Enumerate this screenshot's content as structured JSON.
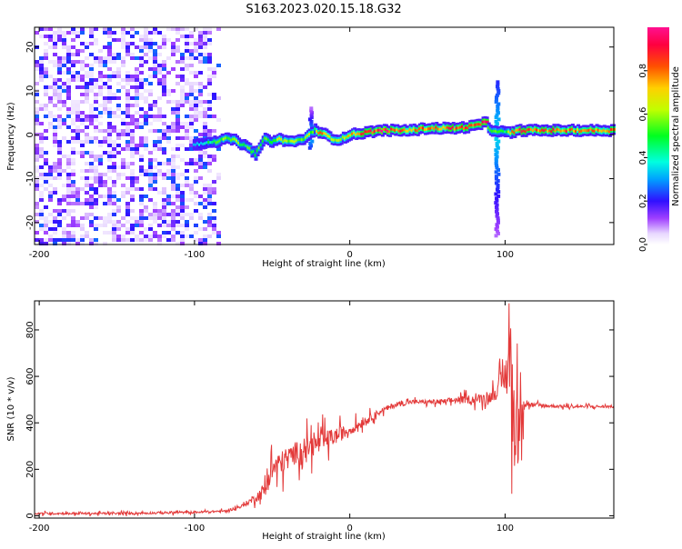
{
  "title": "S163.2023.020.15.18.G32",
  "colors": {
    "signal": "#e33a3a",
    "frame": "#000000"
  },
  "chart_data": [
    {
      "type": "heatmap",
      "xlabel": "Height of straight line (km)",
      "ylabel": "Frequency (Hz)",
      "xlim": [
        -203,
        170
      ],
      "ylim": [
        -25,
        24.5
      ],
      "x_ticks": [
        {
          "v": -200,
          "label": "-200"
        },
        {
          "v": -100,
          "label": "-100"
        },
        {
          "v": 0,
          "label": "0"
        },
        {
          "v": 100,
          "label": "100"
        }
      ],
      "y_ticks": [
        {
          "v": -20,
          "label": "-20"
        },
        {
          "v": -10,
          "label": "-10"
        },
        {
          "v": 0,
          "label": "0"
        },
        {
          "v": 10,
          "label": "10"
        },
        {
          "v": 20,
          "label": "20"
        }
      ],
      "colorbar": {
        "label": "Normalized spectral amplitude",
        "range": [
          0,
          1
        ],
        "ticks": [
          {
            "v": 0.0,
            "label": "0.0"
          },
          {
            "v": 0.2,
            "label": "0.2"
          },
          {
            "v": 0.4,
            "label": "0.4"
          },
          {
            "v": 0.6,
            "label": "0.6"
          },
          {
            "v": 0.8,
            "label": "0.8"
          }
        ]
      },
      "ridge": {
        "x": [
          -100,
          -95,
          -90,
          -85,
          -80,
          -75,
          -70,
          -65,
          -60,
          -55,
          -50,
          -45,
          -40,
          -35,
          -30,
          -25,
          -22,
          -20,
          -15,
          -10,
          -5,
          0,
          10,
          20,
          30,
          40,
          50,
          60,
          70,
          80,
          85,
          88,
          90,
          95,
          100,
          105,
          110,
          120,
          130,
          140,
          150,
          160,
          170
        ],
        "freq": [
          -2,
          -2,
          -1.5,
          -1.5,
          -1,
          -1,
          -2,
          -3,
          -4.5,
          -1,
          -1.5,
          -1,
          -1.5,
          -1.5,
          -1,
          0,
          1.5,
          0.5,
          0,
          -1,
          -1,
          0,
          0.5,
          1,
          1,
          1,
          1.5,
          1.5,
          1.5,
          2,
          2.5,
          3,
          1,
          1,
          0.5,
          0.5,
          1,
          1,
          1,
          1,
          1,
          1,
          1
        ],
        "amp": [
          0.35,
          0.35,
          0.45,
          0.5,
          0.55,
          0.6,
          0.55,
          0.5,
          0.55,
          0.5,
          0.55,
          0.6,
          0.6,
          0.6,
          0.55,
          0.6,
          0.5,
          0.75,
          0.7,
          0.6,
          0.6,
          0.7,
          0.8,
          0.9,
          0.85,
          0.8,
          0.8,
          0.8,
          0.85,
          0.85,
          0.9,
          0.9,
          0.55,
          0.5,
          0.45,
          0.8,
          0.9,
          0.85,
          0.8,
          0.8,
          0.8,
          0.8,
          0.8
        ]
      },
      "spikes": [
        {
          "x": -25,
          "fmin": -3,
          "fmax": 6
        },
        {
          "x": 95,
          "fmin": -23,
          "fmax": 12
        }
      ]
    },
    {
      "type": "line",
      "name": "SNR",
      "xlabel": "Height of straight line (km)",
      "ylabel": "SNR (10 * v/v)",
      "xlim": [
        -203,
        170
      ],
      "ylim": [
        -10,
        925
      ],
      "x_ticks": [
        {
          "v": -200,
          "label": "-200"
        },
        {
          "v": -100,
          "label": "-100"
        },
        {
          "v": 0,
          "label": "0"
        },
        {
          "v": 100,
          "label": "100"
        }
      ],
      "y_ticks": [
        {
          "v": 0,
          "label": "0"
        },
        {
          "v": 200,
          "label": "200"
        },
        {
          "v": 400,
          "label": "400"
        },
        {
          "v": 600,
          "label": "600"
        },
        {
          "v": 800,
          "label": "800"
        }
      ],
      "x": [
        -203,
        -150,
        -100,
        -80,
        -70,
        -60,
        -55,
        -50,
        -45,
        -40,
        -30,
        -20,
        -10,
        0,
        10,
        20,
        30,
        40,
        50,
        60,
        70,
        80,
        90,
        95,
        100,
        103,
        105,
        108,
        110,
        115,
        120,
        140,
        160,
        170
      ],
      "y": [
        10,
        10,
        15,
        20,
        40,
        80,
        110,
        200,
        220,
        250,
        290,
        310,
        340,
        370,
        410,
        450,
        480,
        490,
        490,
        490,
        500,
        500,
        510,
        540,
        600,
        680,
        500,
        300,
        520,
        480,
        475,
        470,
        470,
        470
      ],
      "noise_amp": [
        8,
        8,
        8,
        8,
        10,
        30,
        60,
        90,
        90,
        80,
        80,
        80,
        60,
        40,
        30,
        20,
        20,
        15,
        15,
        20,
        25,
        30,
        40,
        60,
        120,
        350,
        400,
        300,
        200,
        20,
        15,
        10,
        10,
        10
      ]
    }
  ]
}
